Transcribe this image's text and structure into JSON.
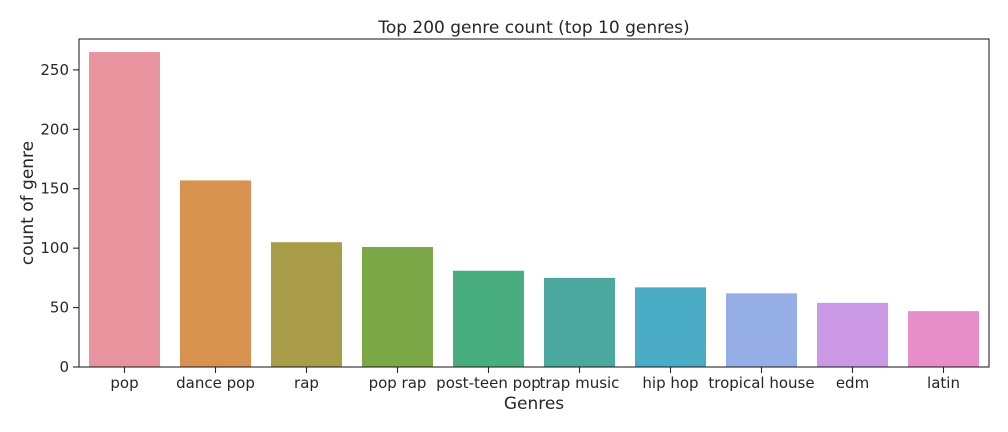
{
  "chart_data": {
    "type": "bar",
    "title": "Top 200 genre count (top 10 genres)",
    "xlabel": "Genres",
    "ylabel": "count of genre",
    "categories": [
      "pop",
      "dance pop",
      "rap",
      "pop rap",
      "post-teen pop",
      "trap music",
      "hip hop",
      "tropical house",
      "edm",
      "latin"
    ],
    "values": [
      265,
      157,
      105,
      101,
      81,
      75,
      67,
      62,
      54,
      47
    ],
    "ylim": [
      0,
      276
    ],
    "yticks": [
      0,
      50,
      100,
      150,
      200,
      250
    ],
    "grid": false,
    "colors": [
      "#e8949f",
      "#d6924e",
      "#a89c48",
      "#7ba746",
      "#48ad7f",
      "#4aa89f",
      "#4aabc4",
      "#95aee6",
      "#cb98e6",
      "#e78ec9"
    ]
  }
}
